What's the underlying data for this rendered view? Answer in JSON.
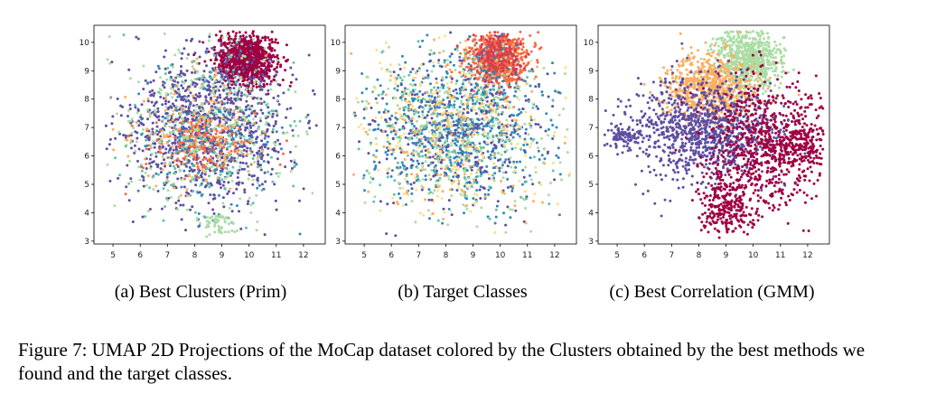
{
  "chart_data": [
    {
      "type": "scatter",
      "caption": "(a) Best Clusters (Prim)",
      "xlim": [
        4.3,
        12.8
      ],
      "ylim": [
        2.9,
        10.6
      ],
      "xticks": [
        5,
        6,
        7,
        8,
        9,
        10,
        11,
        12
      ],
      "yticks": [
        3,
        4,
        5,
        6,
        7,
        8,
        9,
        10
      ],
      "grid": false,
      "palette": [
        "#9e0142",
        "#f46d43",
        "#fdae61",
        "#fee08b",
        "#abdda4",
        "#66c2a5",
        "#3288bd",
        "#5e4fa2"
      ],
      "clusters": [
        {
          "color": "#9e0142",
          "cx": 9.9,
          "cy": 9.4,
          "sx": 0.55,
          "sy": 0.45,
          "n": 900
        },
        {
          "color": "#5e4fa2",
          "cx": 8.5,
          "cy": 7.0,
          "sx": 1.5,
          "sy": 1.3,
          "n": 1100
        },
        {
          "color": "#f46d43",
          "cx": 8.3,
          "cy": 6.5,
          "sx": 0.9,
          "sy": 0.6,
          "n": 220
        },
        {
          "color": "#fdae61",
          "cx": 8.2,
          "cy": 6.8,
          "sx": 1.2,
          "sy": 1.1,
          "n": 160
        },
        {
          "color": "#abdda4",
          "cx": 8.4,
          "cy": 7.0,
          "sx": 1.9,
          "sy": 1.6,
          "n": 320
        },
        {
          "color": "#66c2a5",
          "cx": 8.6,
          "cy": 6.6,
          "sx": 1.8,
          "sy": 1.4,
          "n": 150
        },
        {
          "color": "#3288bd",
          "cx": 8.5,
          "cy": 7.0,
          "sx": 1.4,
          "sy": 1.2,
          "n": 120
        },
        {
          "color": "#abdda4",
          "cx": 8.8,
          "cy": 3.6,
          "sx": 0.3,
          "sy": 0.25,
          "n": 60
        }
      ]
    },
    {
      "type": "scatter",
      "caption": "(b) Target Classes",
      "xlim": [
        4.3,
        12.8
      ],
      "ylim": [
        2.9,
        10.6
      ],
      "xticks": [
        5,
        6,
        7,
        8,
        9,
        10,
        11,
        12
      ],
      "yticks": [
        3,
        4,
        5,
        6,
        7,
        8,
        9,
        10
      ],
      "grid": false,
      "palette": [
        "#9e0142",
        "#d53e4f",
        "#f46d43",
        "#fdae61",
        "#fee08b",
        "#abdda4",
        "#66c2a5",
        "#3288bd",
        "#5e4fa2"
      ],
      "clusters": [
        {
          "color": "#f46d43",
          "cx": 9.9,
          "cy": 9.4,
          "sx": 0.55,
          "sy": 0.45,
          "n": 700
        },
        {
          "color": "#d53e4f",
          "cx": 9.9,
          "cy": 9.5,
          "sx": 0.45,
          "sy": 0.4,
          "n": 250
        },
        {
          "color": "#3288bd",
          "cx": 8.5,
          "cy": 7.0,
          "sx": 1.6,
          "sy": 1.3,
          "n": 700
        },
        {
          "color": "#5e4fa2",
          "cx": 8.4,
          "cy": 7.0,
          "sx": 1.6,
          "sy": 1.3,
          "n": 350
        },
        {
          "color": "#abdda4",
          "cx": 8.4,
          "cy": 6.8,
          "sx": 1.9,
          "sy": 1.6,
          "n": 350
        },
        {
          "color": "#fee08b",
          "cx": 8.3,
          "cy": 6.8,
          "sx": 1.9,
          "sy": 1.5,
          "n": 250
        },
        {
          "color": "#fdae61",
          "cx": 8.2,
          "cy": 6.9,
          "sx": 1.7,
          "sy": 1.5,
          "n": 180
        },
        {
          "color": "#66c2a5",
          "cx": 8.6,
          "cy": 6.8,
          "sx": 1.8,
          "sy": 1.5,
          "n": 150
        }
      ]
    },
    {
      "type": "scatter",
      "caption": "(c) Best Correlation (GMM)",
      "xlim": [
        4.3,
        12.8
      ],
      "ylim": [
        2.9,
        10.6
      ],
      "xticks": [
        5,
        6,
        7,
        8,
        9,
        10,
        11,
        12
      ],
      "yticks": [
        3,
        4,
        5,
        6,
        7,
        8,
        9,
        10
      ],
      "grid": false,
      "palette": [
        "#9e0142",
        "#fdae61",
        "#abdda4",
        "#5e4fa2"
      ],
      "clusters": [
        {
          "color": "#abdda4",
          "cx": 9.8,
          "cy": 9.4,
          "sx": 0.6,
          "sy": 0.55,
          "n": 750
        },
        {
          "color": "#fdae61",
          "cx": 8.4,
          "cy": 8.4,
          "sx": 0.8,
          "sy": 0.6,
          "n": 650
        },
        {
          "color": "#5e4fa2",
          "cx": 8.2,
          "cy": 6.9,
          "sx": 1.3,
          "sy": 0.9,
          "n": 1000
        },
        {
          "color": "#5e4fa2",
          "cx": 5.3,
          "cy": 6.7,
          "sx": 0.35,
          "sy": 0.2,
          "n": 80
        },
        {
          "color": "#9e0142",
          "cx": 10.6,
          "cy": 6.4,
          "sx": 1.1,
          "sy": 1.2,
          "n": 800
        },
        {
          "color": "#9e0142",
          "cx": 9.0,
          "cy": 4.2,
          "sx": 0.5,
          "sy": 0.6,
          "n": 250
        },
        {
          "color": "#9e0142",
          "cx": 11.8,
          "cy": 6.4,
          "sx": 0.4,
          "sy": 0.3,
          "n": 120
        }
      ]
    }
  ],
  "figure_caption": "Figure 7: UMAP 2D Projections of the MoCap dataset colored by the Clusters obtained by the best methods we found and the target classes."
}
